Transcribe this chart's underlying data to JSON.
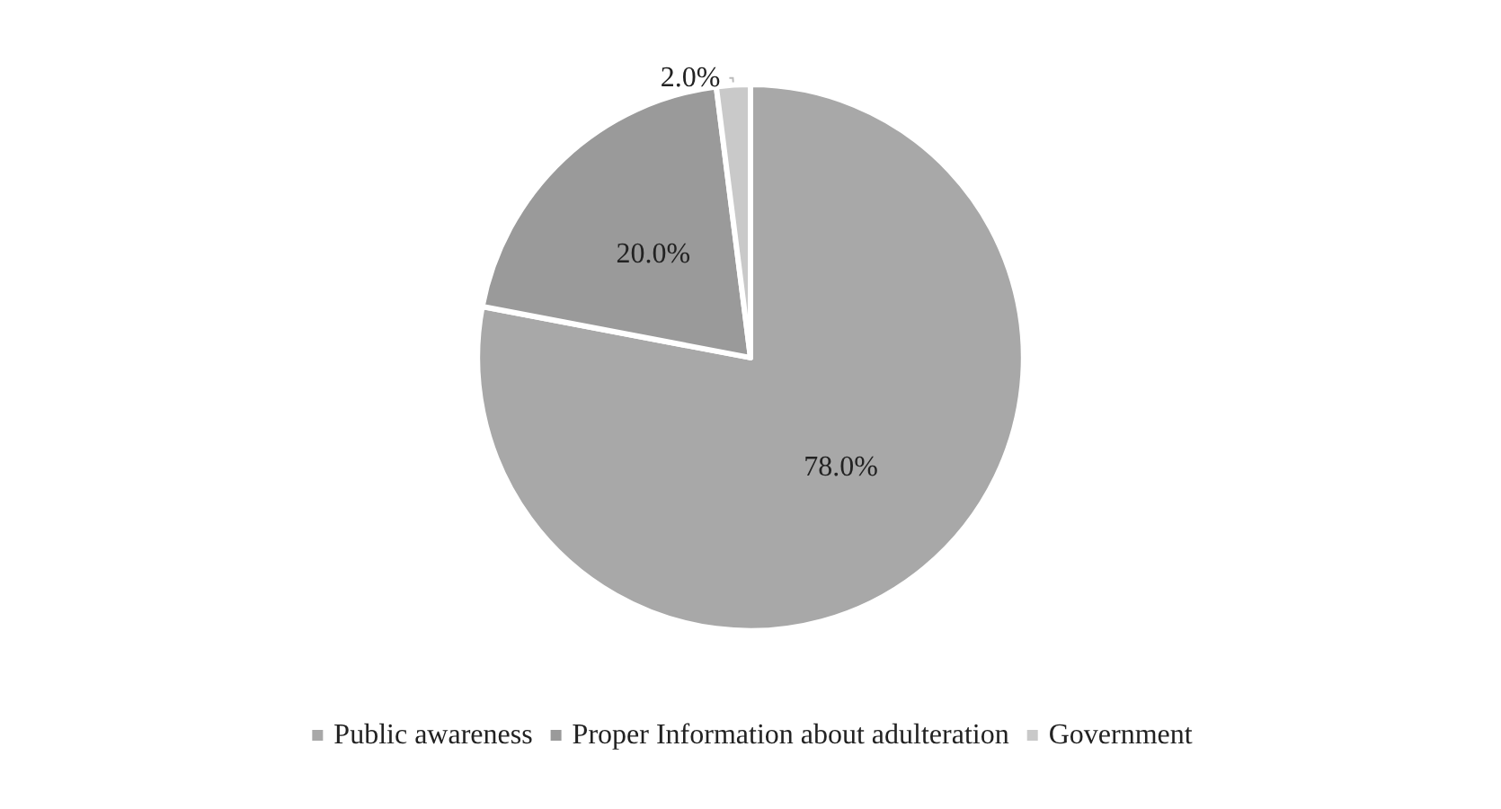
{
  "chart_data": {
    "type": "pie",
    "categories": [
      "Public awareness",
      "Proper Information about adulteration",
      "Government"
    ],
    "values": [
      78,
      20,
      2
    ],
    "colors": [
      "#a8a8a8",
      "#9a9a9a",
      "#c9c9c9"
    ],
    "value_labels": [
      "78.0%",
      "20.0%",
      "2.0%"
    ],
    "legend": "bottom"
  }
}
